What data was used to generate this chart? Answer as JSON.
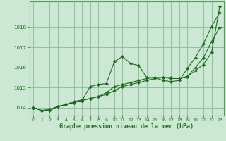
{
  "title": "Graphe pression niveau de la mer (hPa)",
  "background_color": "#cce8d4",
  "plot_bg_color": "#cce8d4",
  "grid_color": "#88bb99",
  "line_color": "#1a6b1a",
  "marker_color": "#1a6b1a",
  "xlim": [
    -0.5,
    23.5
  ],
  "ylim": [
    1013.6,
    1019.3
  ],
  "yticks": [
    1014,
    1015,
    1016,
    1017,
    1018
  ],
  "xticks": [
    0,
    1,
    2,
    3,
    4,
    5,
    6,
    7,
    8,
    9,
    10,
    11,
    12,
    13,
    14,
    15,
    16,
    17,
    18,
    19,
    20,
    21,
    22,
    23
  ],
  "series": [
    [
      1014.0,
      1013.85,
      1013.85,
      1014.05,
      1014.15,
      1014.25,
      1014.35,
      1015.05,
      1015.15,
      1015.2,
      1016.3,
      1016.55,
      1016.2,
      1016.1,
      1015.5,
      1015.5,
      1015.35,
      1015.3,
      1015.35,
      1015.95,
      1016.5,
      1017.2,
      1018.05,
      1018.75
    ],
    [
      1014.0,
      1013.85,
      1013.9,
      1014.05,
      1014.15,
      1014.25,
      1014.35,
      1014.45,
      1014.55,
      1014.75,
      1015.05,
      1015.15,
      1015.25,
      1015.35,
      1015.45,
      1015.5,
      1015.5,
      1015.45,
      1015.45,
      1015.55,
      1016.0,
      1016.5,
      1017.3,
      1018.0
    ],
    [
      1014.0,
      1013.85,
      1013.9,
      1014.05,
      1014.15,
      1014.3,
      1014.38,
      1014.45,
      1014.55,
      1014.65,
      1014.85,
      1015.05,
      1015.15,
      1015.25,
      1015.35,
      1015.45,
      1015.5,
      1015.5,
      1015.45,
      1015.55,
      1015.85,
      1016.15,
      1016.75,
      1019.05
    ]
  ]
}
